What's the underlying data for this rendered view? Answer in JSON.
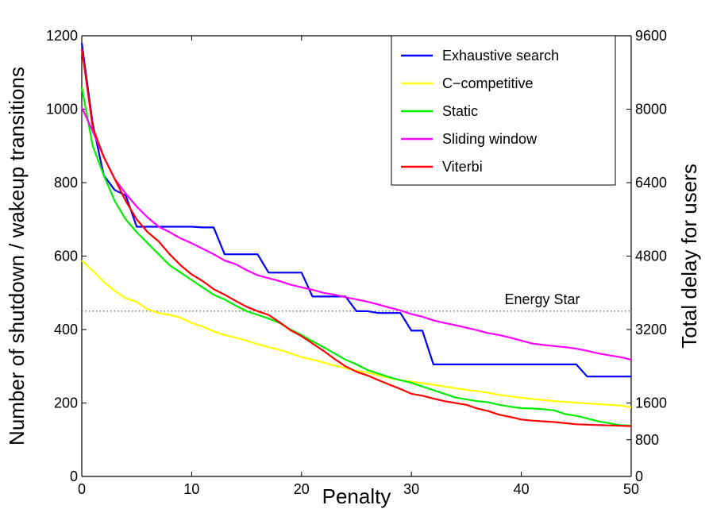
{
  "chart_data": {
    "type": "line",
    "xlabel": "Penalty",
    "ylabel_left": "Number of shutdown / wakeup transitions",
    "ylabel_right": "Total delay for users",
    "xlim": [
      0,
      50
    ],
    "ylim_left": [
      0,
      1200
    ],
    "ylim_right": [
      0,
      9600
    ],
    "x_ticks": [
      "0",
      "10",
      "20",
      "30",
      "40",
      "50"
    ],
    "y_ticks_left": [
      "0",
      "200",
      "400",
      "600",
      "800",
      "1000",
      "1200"
    ],
    "y_ticks_right": [
      "0",
      "800",
      "1600",
      "3200",
      "4800",
      "6400",
      "8000",
      "9600"
    ],
    "y_ticks_right_values": [
      0,
      800,
      1600,
      3200,
      4800,
      6400,
      8000,
      9600
    ],
    "grid": false,
    "legend_position": "top-right",
    "annotation": {
      "text": "Energy Star",
      "y": 450,
      "style": "dotted"
    },
    "series": [
      {
        "name": "Exhaustive search",
        "color": "#0000ff",
        "x": [
          0,
          1,
          2,
          3,
          4,
          5,
          6,
          7,
          8,
          9,
          10,
          11,
          12,
          13,
          14,
          15,
          16,
          17,
          18,
          19,
          20,
          21,
          22,
          23,
          24,
          25,
          26,
          27,
          28,
          29,
          30,
          31,
          32,
          33,
          34,
          35,
          36,
          37,
          38,
          39,
          40,
          41,
          42,
          43,
          44,
          45,
          46,
          47,
          48,
          49,
          50
        ],
        "y": [
          1180,
          960,
          820,
          780,
          765,
          680,
          680,
          680,
          680,
          680,
          680,
          678,
          678,
          605,
          605,
          605,
          605,
          555,
          555,
          555,
          555,
          490,
          490,
          490,
          490,
          450,
          450,
          445,
          445,
          445,
          397,
          397,
          305,
          305,
          305,
          305,
          305,
          305,
          305,
          305,
          305,
          305,
          305,
          305,
          305,
          305,
          272,
          272,
          272,
          272,
          272
        ]
      },
      {
        "name": "C−competitive",
        "color": "#ffff00",
        "x": [
          0,
          1,
          2,
          3,
          4,
          5,
          6,
          7,
          8,
          9,
          10,
          11,
          12,
          13,
          14,
          15,
          16,
          17,
          18,
          19,
          20,
          21,
          22,
          23,
          24,
          25,
          26,
          27,
          28,
          29,
          30,
          31,
          32,
          33,
          34,
          35,
          36,
          37,
          38,
          39,
          40,
          41,
          42,
          43,
          44,
          45,
          46,
          47,
          48,
          49,
          50
        ],
        "y": [
          588,
          560,
          530,
          505,
          485,
          475,
          455,
          445,
          440,
          432,
          418,
          408,
          395,
          385,
          378,
          370,
          360,
          352,
          345,
          335,
          325,
          318,
          310,
          302,
          295,
          288,
          283,
          275,
          268,
          262,
          258,
          254,
          250,
          245,
          240,
          236,
          232,
          228,
          222,
          218,
          214,
          211,
          208,
          205,
          203,
          201,
          199,
          197,
          195,
          193,
          188
        ]
      },
      {
        "name": "Static",
        "color": "#00ee00",
        "x": [
          0,
          1,
          2,
          3,
          4,
          5,
          6,
          7,
          8,
          9,
          10,
          11,
          12,
          13,
          14,
          15,
          16,
          17,
          18,
          19,
          20,
          21,
          22,
          23,
          24,
          25,
          26,
          27,
          28,
          29,
          30,
          31,
          32,
          33,
          34,
          35,
          36,
          37,
          38,
          39,
          40,
          41,
          42,
          43,
          44,
          45,
          46,
          47,
          48,
          49,
          50
        ],
        "y": [
          1060,
          900,
          820,
          750,
          700,
          665,
          635,
          605,
          575,
          555,
          535,
          515,
          495,
          482,
          465,
          450,
          440,
          430,
          418,
          400,
          385,
          368,
          352,
          335,
          318,
          305,
          290,
          280,
          270,
          262,
          255,
          245,
          235,
          225,
          215,
          210,
          205,
          202,
          195,
          190,
          186,
          185,
          183,
          180,
          170,
          165,
          158,
          150,
          145,
          140,
          138
        ]
      },
      {
        "name": "Sliding window",
        "color": "#ff00ff",
        "x": [
          0,
          1,
          2,
          3,
          4,
          5,
          6,
          7,
          8,
          9,
          10,
          11,
          12,
          13,
          14,
          15,
          16,
          17,
          18,
          19,
          20,
          21,
          22,
          23,
          24,
          25,
          26,
          27,
          28,
          29,
          30,
          31,
          32,
          33,
          34,
          35,
          36,
          37,
          38,
          39,
          40,
          41,
          42,
          43,
          44,
          45,
          46,
          47,
          48,
          49,
          50
        ],
        "y": [
          1005,
          940,
          870,
          810,
          770,
          735,
          705,
          680,
          665,
          648,
          635,
          620,
          605,
          588,
          578,
          562,
          548,
          540,
          532,
          522,
          515,
          508,
          500,
          495,
          488,
          482,
          476,
          468,
          460,
          452,
          442,
          435,
          425,
          418,
          412,
          405,
          398,
          390,
          385,
          378,
          370,
          362,
          358,
          355,
          352,
          348,
          342,
          335,
          330,
          325,
          318
        ]
      },
      {
        "name": "Viterbi",
        "color": "#ff0000",
        "x": [
          0,
          1,
          2,
          3,
          4,
          5,
          6,
          7,
          8,
          9,
          10,
          11,
          12,
          13,
          14,
          15,
          16,
          17,
          18,
          19,
          20,
          21,
          22,
          23,
          24,
          25,
          26,
          27,
          28,
          29,
          30,
          31,
          32,
          33,
          34,
          35,
          36,
          37,
          38,
          39,
          40,
          41,
          42,
          43,
          44,
          45,
          46,
          47,
          48,
          49,
          50
        ],
        "y": [
          1165,
          950,
          870,
          810,
          750,
          700,
          665,
          640,
          605,
          575,
          550,
          532,
          510,
          495,
          478,
          462,
          450,
          440,
          420,
          398,
          382,
          362,
          342,
          320,
          300,
          285,
          275,
          262,
          250,
          238,
          225,
          220,
          212,
          205,
          200,
          195,
          185,
          178,
          168,
          162,
          155,
          152,
          150,
          148,
          145,
          142,
          141,
          140,
          139,
          138,
          137
        ]
      }
    ]
  }
}
